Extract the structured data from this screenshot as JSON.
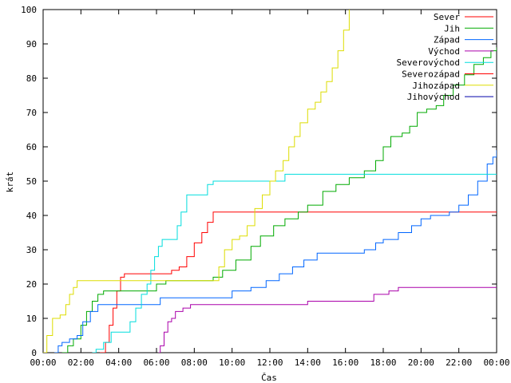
{
  "chart_data": {
    "type": "line",
    "title": "",
    "xlabel": "Čas",
    "ylabel": "krát",
    "xlim": [
      0,
      24
    ],
    "ylim": [
      0,
      100
    ],
    "x_ticks": [
      {
        "v": 0,
        "label": "00:00"
      },
      {
        "v": 2,
        "label": "02:00"
      },
      {
        "v": 4,
        "label": "04:00"
      },
      {
        "v": 6,
        "label": "06:00"
      },
      {
        "v": 8,
        "label": "08:00"
      },
      {
        "v": 10,
        "label": "10:00"
      },
      {
        "v": 12,
        "label": "12:00"
      },
      {
        "v": 14,
        "label": "14:00"
      },
      {
        "v": 16,
        "label": "16:00"
      },
      {
        "v": 18,
        "label": "18:00"
      },
      {
        "v": 20,
        "label": "20:00"
      },
      {
        "v": 22,
        "label": "22:00"
      },
      {
        "v": 24,
        "label": "00:00"
      }
    ],
    "y_ticks": [
      0,
      10,
      20,
      30,
      40,
      50,
      60,
      70,
      80,
      90,
      100
    ],
    "legend_position": "top-right",
    "grid": false,
    "series": [
      {
        "name": "Sever",
        "color": "#ff0000",
        "points": [
          [
            3.0,
            0
          ],
          [
            3.3,
            3
          ],
          [
            3.5,
            8
          ],
          [
            3.7,
            13
          ],
          [
            3.9,
            18
          ],
          [
            4.1,
            22
          ],
          [
            4.3,
            23
          ],
          [
            6.5,
            23
          ],
          [
            6.8,
            24
          ],
          [
            7.2,
            25
          ],
          [
            7.6,
            28
          ],
          [
            8.0,
            32
          ],
          [
            8.4,
            35
          ],
          [
            8.7,
            38
          ],
          [
            9.0,
            41
          ],
          [
            24,
            41
          ]
        ]
      },
      {
        "name": "Jih",
        "color": "#00aa00",
        "points": [
          [
            1.0,
            0
          ],
          [
            1.3,
            2
          ],
          [
            1.6,
            4
          ],
          [
            2.0,
            8
          ],
          [
            2.3,
            12
          ],
          [
            2.6,
            15
          ],
          [
            2.9,
            17
          ],
          [
            3.2,
            18
          ],
          [
            5.8,
            18
          ],
          [
            6.0,
            20
          ],
          [
            6.5,
            21
          ],
          [
            7.0,
            21
          ],
          [
            9.0,
            22
          ],
          [
            9.5,
            24
          ],
          [
            10.2,
            27
          ],
          [
            11.0,
            31
          ],
          [
            11.5,
            34
          ],
          [
            12.2,
            37
          ],
          [
            12.8,
            39
          ],
          [
            13.5,
            41
          ],
          [
            14.0,
            43
          ],
          [
            14.8,
            47
          ],
          [
            15.5,
            49
          ],
          [
            16.2,
            51
          ],
          [
            17.0,
            53
          ],
          [
            17.6,
            56
          ],
          [
            18.0,
            60
          ],
          [
            18.4,
            63
          ],
          [
            19.0,
            64
          ],
          [
            19.4,
            66
          ],
          [
            19.8,
            70
          ],
          [
            20.3,
            71
          ],
          [
            20.8,
            72
          ],
          [
            21.2,
            75
          ],
          [
            21.7,
            78
          ],
          [
            22.3,
            81
          ],
          [
            22.8,
            84
          ],
          [
            23.3,
            86
          ],
          [
            23.7,
            88
          ],
          [
            24,
            89
          ]
        ]
      },
      {
        "name": "Západ",
        "color": "#0066ff",
        "points": [
          [
            0.6,
            0
          ],
          [
            0.8,
            2
          ],
          [
            1.0,
            3
          ],
          [
            1.4,
            4
          ],
          [
            1.8,
            5
          ],
          [
            2.1,
            9
          ],
          [
            2.5,
            12
          ],
          [
            2.9,
            14
          ],
          [
            5.9,
            14
          ],
          [
            6.2,
            16
          ],
          [
            9.0,
            16
          ],
          [
            10.0,
            18
          ],
          [
            11.0,
            19
          ],
          [
            11.8,
            21
          ],
          [
            12.5,
            23
          ],
          [
            13.2,
            25
          ],
          [
            13.8,
            27
          ],
          [
            14.5,
            29
          ],
          [
            15.5,
            29
          ],
          [
            17.0,
            30
          ],
          [
            17.6,
            32
          ],
          [
            18.0,
            33
          ],
          [
            18.8,
            35
          ],
          [
            19.5,
            37
          ],
          [
            20.0,
            39
          ],
          [
            20.5,
            40
          ],
          [
            21.5,
            41
          ],
          [
            22.0,
            43
          ],
          [
            22.5,
            46
          ],
          [
            23.0,
            50
          ],
          [
            23.5,
            55
          ],
          [
            23.8,
            57
          ],
          [
            24,
            59
          ]
        ]
      },
      {
        "name": "Východ",
        "color": "#aa00aa",
        "points": [
          [
            6.1,
            0
          ],
          [
            6.2,
            2
          ],
          [
            6.4,
            6
          ],
          [
            6.6,
            9
          ],
          [
            6.8,
            10
          ],
          [
            7.0,
            12
          ],
          [
            7.4,
            13
          ],
          [
            7.8,
            14
          ],
          [
            13.5,
            14
          ],
          [
            14.0,
            15
          ],
          [
            17.2,
            15
          ],
          [
            17.5,
            17
          ],
          [
            18.3,
            18
          ],
          [
            18.8,
            19
          ],
          [
            24,
            19
          ]
        ]
      },
      {
        "name": "Severovýchod",
        "color": "#00dddd",
        "points": [
          [
            2.6,
            0
          ],
          [
            2.8,
            1
          ],
          [
            3.2,
            3
          ],
          [
            3.6,
            6
          ],
          [
            4.2,
            6
          ],
          [
            4.6,
            9
          ],
          [
            4.9,
            13
          ],
          [
            5.2,
            17
          ],
          [
            5.5,
            20
          ],
          [
            5.7,
            24
          ],
          [
            5.9,
            28
          ],
          [
            6.1,
            31
          ],
          [
            6.3,
            33
          ],
          [
            6.9,
            33
          ],
          [
            7.1,
            37
          ],
          [
            7.3,
            41
          ],
          [
            7.6,
            46
          ],
          [
            8.4,
            46
          ],
          [
            8.7,
            49
          ],
          [
            9.0,
            50
          ],
          [
            12.4,
            50
          ],
          [
            12.8,
            52
          ],
          [
            24,
            52
          ]
        ]
      },
      {
        "name": "Severozápad",
        "color": "#ff0000",
        "points": []
      },
      {
        "name": "Jihozápad",
        "color": "#dddd00",
        "points": [
          [
            0.0,
            0
          ],
          [
            0.2,
            5
          ],
          [
            0.5,
            10
          ],
          [
            0.9,
            11
          ],
          [
            1.2,
            14
          ],
          [
            1.4,
            17
          ],
          [
            1.6,
            19
          ],
          [
            1.8,
            21
          ],
          [
            9.0,
            21
          ],
          [
            9.3,
            25
          ],
          [
            9.6,
            30
          ],
          [
            10.0,
            33
          ],
          [
            10.4,
            34
          ],
          [
            10.8,
            37
          ],
          [
            11.2,
            42
          ],
          [
            11.6,
            46
          ],
          [
            12.0,
            50
          ],
          [
            12.3,
            53
          ],
          [
            12.7,
            56
          ],
          [
            13.0,
            60
          ],
          [
            13.3,
            63
          ],
          [
            13.6,
            67
          ],
          [
            14.0,
            71
          ],
          [
            14.4,
            73
          ],
          [
            14.7,
            76
          ],
          [
            15.0,
            79
          ],
          [
            15.3,
            83
          ],
          [
            15.6,
            88
          ],
          [
            15.9,
            94
          ],
          [
            16.2,
            100
          ]
        ]
      },
      {
        "name": "Jihovýchod",
        "color": "#0000aa",
        "points": []
      }
    ]
  }
}
